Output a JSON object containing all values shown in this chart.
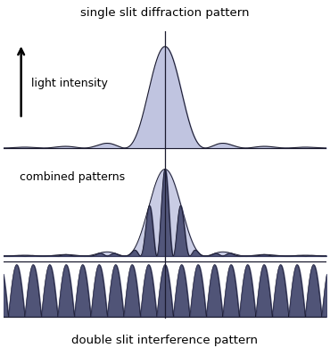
{
  "title_top": "single slit diffraction pattern",
  "title_bottom": "double slit interference pattern",
  "label_top": "light intensity",
  "label_mid": "combined patterns",
  "bg_color": "#ffffff",
  "fill_color_light": "#c0c4e0",
  "fill_color_dark": "#3d4168",
  "line_color": "#1a1a2e",
  "font_size_title": 9.5,
  "font_size_label": 9,
  "x_range": [
    -14,
    14
  ],
  "n_points": 4000,
  "sinc_scale": 3.5,
  "interference_freq": 2.2,
  "ds_freq": 2.2
}
